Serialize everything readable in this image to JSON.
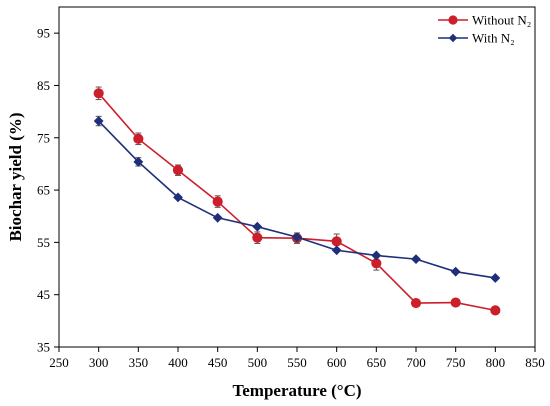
{
  "chart_data": {
    "type": "line",
    "xlabel": "Temperature (°C)",
    "ylabel": "Biochar yield (%)",
    "xlim": [
      250,
      850
    ],
    "ylim": [
      35,
      100
    ],
    "xticks": [
      250,
      300,
      350,
      400,
      450,
      500,
      550,
      600,
      650,
      700,
      750,
      800,
      850
    ],
    "yticks": [
      35,
      45,
      55,
      65,
      75,
      85,
      95
    ],
    "grid": false,
    "legend_position": "top-right",
    "series": [
      {
        "name": "Without N₂",
        "color": "#cc1f2b",
        "marker": "circle",
        "x": [
          300,
          350,
          400,
          450,
          500,
          550,
          600,
          650,
          700,
          750,
          800
        ],
        "y": [
          83.5,
          74.8,
          68.8,
          62.8,
          55.9,
          55.8,
          55.2,
          51.0,
          43.4,
          43.5,
          42.0
        ],
        "error": [
          1.2,
          1.1,
          1.0,
          1.1,
          1.1,
          1.0,
          1.4,
          1.3,
          0.0,
          0.0,
          0.0
        ]
      },
      {
        "name": "With N₂",
        "color": "#1f2f7a",
        "marker": "diamond",
        "x": [
          300,
          350,
          400,
          450,
          500,
          550,
          600,
          650,
          700,
          750,
          800
        ],
        "y": [
          78.2,
          70.4,
          63.6,
          59.7,
          58.0,
          56.0,
          53.5,
          52.5,
          51.8,
          49.4,
          48.2
        ],
        "error": [
          0.9,
          0.8,
          0.0,
          0.0,
          0.0,
          0.8,
          0.0,
          0.0,
          0.0,
          0.0,
          0.0
        ]
      }
    ]
  }
}
